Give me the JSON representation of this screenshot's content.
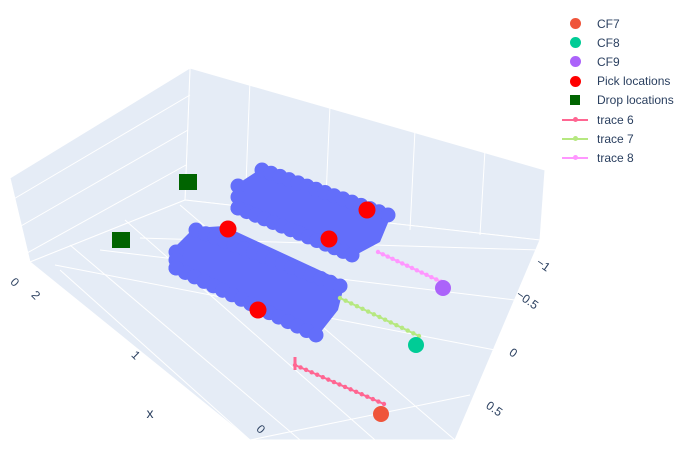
{
  "chart_data": {
    "type": "scatter3d",
    "title": "",
    "axes": {
      "x": {
        "label": "x",
        "ticks": [
          "2",
          "1",
          "0"
        ]
      },
      "y": {
        "label": "",
        "ticks": [
          "−1",
          "−0.5",
          "0",
          "0.5"
        ]
      },
      "z": {
        "label": "",
        "ticks": [
          "0"
        ]
      }
    },
    "background": "#e5ecf6",
    "grid": true,
    "legend_position": "top-right",
    "series": [
      {
        "name": "CF7",
        "mode": "markers",
        "color": "#EF553B",
        "symbol": "circle"
      },
      {
        "name": "CF8",
        "mode": "markers",
        "color": "#00cc96",
        "symbol": "circle"
      },
      {
        "name": "CF9",
        "mode": "markers",
        "color": "#ab63fa",
        "symbol": "circle"
      },
      {
        "name": "Pick locations",
        "mode": "markers",
        "color": "#ff0000",
        "symbol": "circle"
      },
      {
        "name": "Drop locations",
        "mode": "markers",
        "color": "#006400",
        "symbol": "square"
      },
      {
        "name": "trace 6",
        "mode": "lines+markers",
        "color": "#FF6692"
      },
      {
        "name": "trace 7",
        "mode": "lines+markers",
        "color": "#B6E880"
      },
      {
        "name": "trace 8",
        "mode": "lines+markers",
        "color": "#FF97FF"
      }
    ],
    "obstacle_color": "#636efa"
  }
}
